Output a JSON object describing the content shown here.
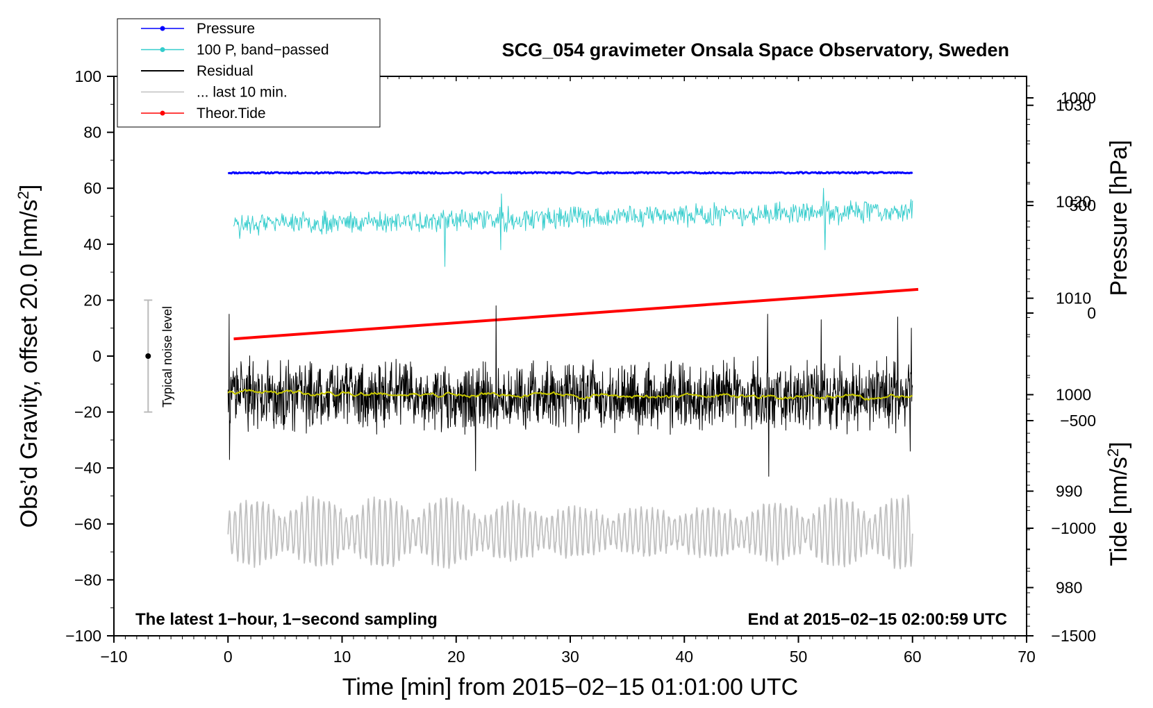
{
  "chart_data": {
    "type": "line",
    "title": "SCG_054 gravimeter Onsala Space Observatory, Sweden",
    "xlabel": "Time [min] from 2015−02−15 01:01:00 UTC",
    "ylabel_left_main": "Obs’d Gravity, offset 20.0 [nm/s",
    "ylabel_left_sup": "2",
    "ylabel_left_close": "]",
    "ylabel_right_pressure": "Pressure [hPa]",
    "ylabel_right_tide_main": "Tide [nm/s",
    "ylabel_right_tide_sup": "2",
    "ylabel_right_tide_close": "]",
    "xlim": [
      -10,
      70
    ],
    "ylim": [
      -100,
      100
    ],
    "pressure_ylim": [
      975,
      1033
    ],
    "tide_ylim": [
      -1500,
      1100
    ],
    "x_ticks": [
      -10,
      0,
      10,
      20,
      30,
      40,
      50,
      60,
      70
    ],
    "x_tick_labels": [
      "−10",
      "0",
      "10",
      "20",
      "30",
      "40",
      "50",
      "60",
      "70"
    ],
    "y_ticks": [
      -100,
      -80,
      -60,
      -40,
      -20,
      0,
      20,
      40,
      60,
      80,
      100
    ],
    "y_tick_labels": [
      "−100",
      "−80",
      "−60",
      "−40",
      "−20",
      "0",
      "20",
      "40",
      "60",
      "80",
      "100"
    ],
    "pressure_ticks": [
      980,
      990,
      1000,
      1010,
      1020,
      1030
    ],
    "pressure_tick_labels": [
      "980",
      "990",
      "1000",
      "1010",
      "1020",
      "1030"
    ],
    "tide_ticks": [
      -1500,
      -1000,
      -500,
      0,
      500,
      1000
    ],
    "tide_tick_labels": [
      "−1500",
      "−1000",
      "−500",
      "0",
      "500",
      "1000"
    ],
    "legend": [
      {
        "label": "Pressure",
        "color": "#0000ff",
        "marker": true
      },
      {
        "label": "100 P, band−passed",
        "color": "#33cccc",
        "marker": true
      },
      {
        "label": "Residual",
        "color": "#000000",
        "marker": false
      },
      {
        "label": "... last 10 min.",
        "color": "#c0c0c0",
        "marker": false
      },
      {
        "label": "Theor.Tide",
        "color": "#ff0000",
        "marker": true
      }
    ],
    "annotations": {
      "left": "The latest 1−hour, 1−second sampling",
      "right": "End at 2015−02−15 02:00:59 UTC",
      "noise_label": "Typical noise level"
    },
    "noise_bar": {
      "x": -7,
      "y_low": -20,
      "y_high": 20,
      "y_center": 0
    },
    "series": [
      {
        "name": "Pressure",
        "color": "#0000ff",
        "axis": "pressure",
        "x_range": [
          0,
          60
        ],
        "base": 1023.0,
        "amp": 0.15,
        "kind": "flat",
        "seed": 11
      },
      {
        "name": "100 P, band-passed",
        "color": "#33cccc",
        "axis": "left",
        "x_range": [
          0.5,
          60
        ],
        "base": 47,
        "end": 52,
        "amp": 3.5,
        "kind": "noise",
        "seed": 23,
        "spikes": [
          {
            "x": 19.0,
            "v": 32
          },
          {
            "x": 23.9,
            "v": 38
          },
          {
            "x": 24.0,
            "v": 58
          },
          {
            "x": 52.2,
            "v": 60
          },
          {
            "x": 52.3,
            "v": 38
          },
          {
            "x": 1.0,
            "v": 42
          }
        ]
      },
      {
        "name": "Residual",
        "color": "#000000",
        "axis": "left",
        "x_range": [
          0,
          60
        ],
        "base": -14,
        "amp": 11,
        "kind": "noise",
        "seed": 37,
        "spikes": [
          {
            "x": 0.1,
            "v": 15
          },
          {
            "x": 0.15,
            "v": -37
          },
          {
            "x": 23.5,
            "v": 18
          },
          {
            "x": 21.7,
            "v": -41
          },
          {
            "x": 47.4,
            "v": -43
          },
          {
            "x": 47.3,
            "v": 15
          },
          {
            "x": 52.0,
            "v": 13
          },
          {
            "x": 58.7,
            "v": 14
          },
          {
            "x": 59.9,
            "v": 10
          },
          {
            "x": 59.8,
            "v": -34
          }
        ]
      },
      {
        "name": "Residual (smoothed)",
        "color": "#c8c800",
        "axis": "left",
        "x_range": [
          0,
          60
        ],
        "base": -13,
        "end": -15,
        "amp": 0.8,
        "kind": "smooth",
        "seed": 41
      },
      {
        "name": "... last 10 min.",
        "color": "#c0c0c0",
        "axis": "left",
        "x_range": [
          0,
          60
        ],
        "base": -63,
        "amp": 13,
        "kind": "wave",
        "seed": 53
      },
      {
        "name": "Theor.Tide",
        "color": "#ff0000",
        "axis": "tide",
        "x_range": [
          0.5,
          60.5
        ],
        "start": -120,
        "end": 110,
        "kind": "linear"
      }
    ]
  }
}
